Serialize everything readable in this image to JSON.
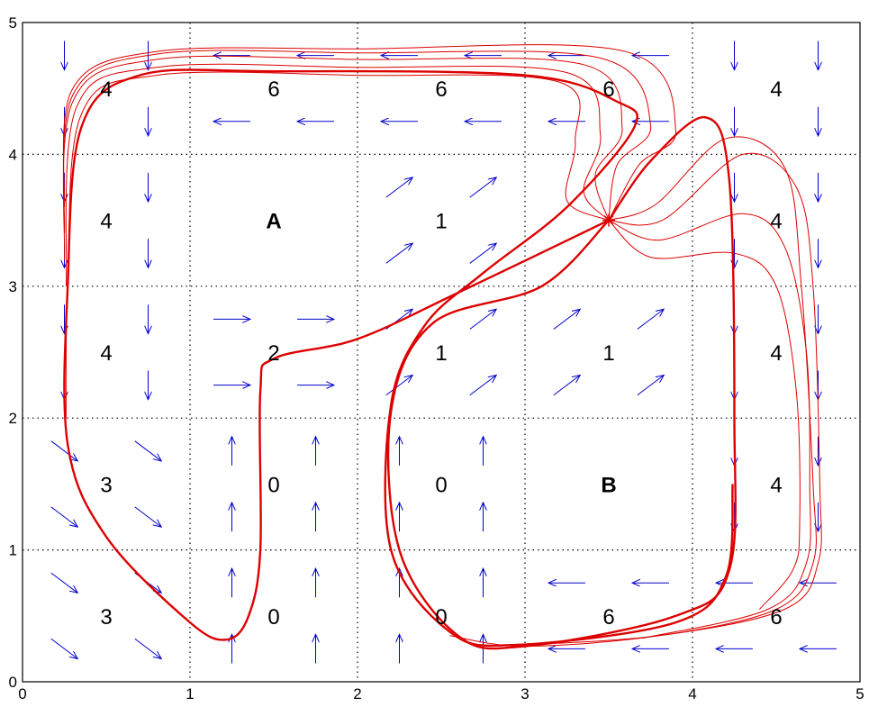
{
  "chart_data": {
    "type": "line",
    "title": "",
    "xlabel": "",
    "ylabel": "",
    "xlim": [
      0,
      5
    ],
    "ylim": [
      0,
      5
    ],
    "grid": true,
    "x_ticks": [
      "0",
      "1",
      "2",
      "3",
      "4",
      "5"
    ],
    "y_ticks": [
      "0",
      "1",
      "2",
      "3",
      "4",
      "5"
    ],
    "colors": {
      "trajectory": "#dd0000",
      "vector_field": "#0000cc",
      "grid": "#000000"
    },
    "cell_labels": [
      {
        "x": 0.5,
        "y": 4.5,
        "text": "4"
      },
      {
        "x": 1.5,
        "y": 4.5,
        "text": "6"
      },
      {
        "x": 2.5,
        "y": 4.5,
        "text": "6"
      },
      {
        "x": 3.5,
        "y": 4.5,
        "text": "6"
      },
      {
        "x": 4.5,
        "y": 4.5,
        "text": "4"
      },
      {
        "x": 0.5,
        "y": 3.5,
        "text": "4"
      },
      {
        "x": 1.5,
        "y": 3.5,
        "text": "A",
        "bold": true
      },
      {
        "x": 2.5,
        "y": 3.5,
        "text": "1"
      },
      {
        "x": 4.5,
        "y": 3.5,
        "text": "4"
      },
      {
        "x": 0.5,
        "y": 2.5,
        "text": "4"
      },
      {
        "x": 1.5,
        "y": 2.5,
        "text": "2"
      },
      {
        "x": 2.5,
        "y": 2.5,
        "text": "1"
      },
      {
        "x": 3.5,
        "y": 2.5,
        "text": "1"
      },
      {
        "x": 4.5,
        "y": 2.5,
        "text": "4"
      },
      {
        "x": 0.5,
        "y": 1.5,
        "text": "3"
      },
      {
        "x": 1.5,
        "y": 1.5,
        "text": "0"
      },
      {
        "x": 2.5,
        "y": 1.5,
        "text": "0"
      },
      {
        "x": 3.5,
        "y": 1.5,
        "text": "B",
        "bold": true
      },
      {
        "x": 4.5,
        "y": 1.5,
        "text": "4"
      },
      {
        "x": 0.5,
        "y": 0.5,
        "text": "3"
      },
      {
        "x": 1.5,
        "y": 0.5,
        "text": "0"
      },
      {
        "x": 2.5,
        "y": 0.5,
        "text": "0"
      },
      {
        "x": 3.5,
        "y": 0.5,
        "text": "6"
      },
      {
        "x": 4.5,
        "y": 0.5,
        "text": "6"
      }
    ],
    "vector_field": {
      "sample_offsets": [
        0.25,
        0.75
      ],
      "cell_directions": [
        [
          "down",
          "left",
          "left",
          "left",
          "down"
        ],
        [
          "down",
          "none",
          "diag_up",
          "none",
          "down"
        ],
        [
          "down",
          "right",
          "diag_up",
          "diag_up",
          "down"
        ],
        [
          "diag_down",
          "up",
          "up",
          "none",
          "down"
        ],
        [
          "diag_down",
          "up",
          "up",
          "left",
          "left"
        ]
      ]
    },
    "initial_point": {
      "x": 3.5,
      "y": 3.5
    },
    "series": [
      {
        "points": [
          [
            3.5,
            3.5
          ],
          [
            3.1,
            3.0
          ],
          [
            2.45,
            2.72
          ],
          [
            2.2,
            2.05
          ],
          [
            2.25,
            1.0
          ],
          [
            2.6,
            0.35
          ],
          [
            3.0,
            0.27
          ],
          [
            3.9,
            0.5
          ],
          [
            4.22,
            0.85
          ],
          [
            4.25,
            2.0
          ],
          [
            4.22,
            3.8
          ],
          [
            4.08,
            4.28
          ],
          [
            3.75,
            3.95
          ],
          [
            3.5,
            3.5
          ]
        ],
        "bold": true
      },
      {
        "points": [
          [
            3.5,
            3.5
          ],
          [
            2.6,
            2.95
          ],
          [
            2.0,
            2.6
          ],
          [
            1.5,
            2.45
          ],
          [
            1.42,
            2.2
          ],
          [
            1.42,
            1.0
          ],
          [
            1.35,
            0.5
          ],
          [
            1.22,
            0.32
          ],
          [
            1.0,
            0.45
          ],
          [
            0.5,
            1.1
          ],
          [
            0.27,
            1.8
          ],
          [
            0.27,
            3.0
          ],
          [
            0.35,
            4.2
          ],
          [
            0.7,
            4.6
          ],
          [
            1.5,
            4.63
          ],
          [
            3.0,
            4.6
          ],
          [
            3.55,
            4.4
          ],
          [
            3.65,
            4.2
          ],
          [
            3.25,
            3.6
          ],
          [
            2.75,
            3.1
          ],
          [
            2.4,
            2.7
          ],
          [
            2.2,
            2.1
          ],
          [
            2.2,
            1.0
          ],
          [
            2.55,
            0.38
          ],
          [
            2.95,
            0.28
          ],
          [
            3.9,
            0.45
          ],
          [
            4.2,
            0.8
          ],
          [
            4.24,
            1.5
          ]
        ],
        "bold": true
      },
      {
        "points": [
          [
            3.5,
            3.5
          ],
          [
            3.25,
            3.65
          ],
          [
            3.3,
            4.1
          ],
          [
            3.2,
            4.55
          ],
          [
            2.0,
            4.6
          ],
          [
            0.8,
            4.6
          ],
          [
            0.35,
            4.3
          ],
          [
            0.27,
            3.0
          ],
          [
            0.26,
            2.0
          ]
        ]
      },
      {
        "points": [
          [
            3.5,
            3.5
          ],
          [
            3.35,
            3.72
          ],
          [
            3.45,
            4.15
          ],
          [
            3.25,
            4.62
          ],
          [
            2.0,
            4.66
          ],
          [
            0.8,
            4.66
          ],
          [
            0.32,
            4.35
          ],
          [
            0.26,
            3.0
          ]
        ]
      },
      {
        "points": [
          [
            3.5,
            3.5
          ],
          [
            3.42,
            3.85
          ],
          [
            3.58,
            4.2
          ],
          [
            3.35,
            4.68
          ],
          [
            2.0,
            4.72
          ],
          [
            0.8,
            4.72
          ],
          [
            0.3,
            4.4
          ],
          [
            0.25,
            3.2
          ]
        ]
      },
      {
        "points": [
          [
            3.5,
            3.5
          ],
          [
            3.55,
            3.92
          ],
          [
            3.75,
            4.22
          ],
          [
            3.45,
            4.73
          ],
          [
            2.0,
            4.77
          ],
          [
            0.8,
            4.76
          ],
          [
            0.3,
            4.45
          ],
          [
            0.25,
            3.4
          ]
        ]
      },
      {
        "points": [
          [
            3.5,
            3.5
          ],
          [
            3.68,
            3.92
          ],
          [
            3.9,
            4.18
          ],
          [
            3.6,
            4.78
          ],
          [
            2.0,
            4.8
          ],
          [
            0.8,
            4.78
          ],
          [
            0.3,
            4.5
          ],
          [
            0.25,
            3.6
          ]
        ]
      },
      {
        "points": [
          [
            3.5,
            3.5
          ],
          [
            3.78,
            3.62
          ],
          [
            4.2,
            4.12
          ],
          [
            4.55,
            3.9
          ],
          [
            4.65,
            3.0
          ],
          [
            4.72,
            1.5
          ],
          [
            4.72,
            0.9
          ],
          [
            4.5,
            0.55
          ],
          [
            3.8,
            0.35
          ],
          [
            3.0,
            0.27
          ],
          [
            2.55,
            0.35
          ]
        ]
      },
      {
        "points": [
          [
            3.5,
            3.5
          ],
          [
            3.82,
            3.5
          ],
          [
            4.3,
            4.0
          ],
          [
            4.62,
            3.75
          ],
          [
            4.72,
            3.0
          ],
          [
            4.76,
            1.5
          ],
          [
            4.75,
            0.9
          ],
          [
            4.55,
            0.55
          ],
          [
            3.8,
            0.35
          ],
          [
            3.0,
            0.28
          ]
        ]
      },
      {
        "points": [
          [
            3.5,
            3.5
          ],
          [
            3.8,
            3.35
          ],
          [
            4.3,
            3.55
          ],
          [
            4.55,
            3.3
          ],
          [
            4.68,
            2.5
          ],
          [
            4.7,
            1.5
          ],
          [
            4.68,
            0.9
          ],
          [
            4.45,
            0.55
          ],
          [
            3.7,
            0.33
          ]
        ]
      },
      {
        "points": [
          [
            3.5,
            3.5
          ],
          [
            3.75,
            3.22
          ],
          [
            4.25,
            3.25
          ],
          [
            4.5,
            3.0
          ],
          [
            4.62,
            2.2
          ],
          [
            4.64,
            1.2
          ],
          [
            4.6,
            0.85
          ],
          [
            4.4,
            0.55
          ]
        ]
      }
    ]
  }
}
